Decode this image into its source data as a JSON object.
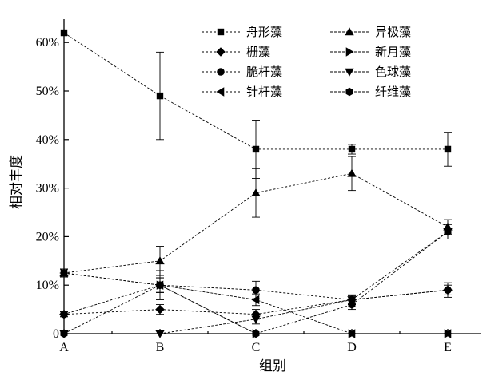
{
  "chart_data": {
    "type": "line",
    "title": "",
    "xlabel": "组别",
    "ylabel": "相对丰度",
    "categories": [
      "A",
      "B",
      "C",
      "D",
      "E"
    ],
    "ylim": [
      0,
      65
    ],
    "y_ticks": [
      0,
      10,
      20,
      30,
      40,
      50,
      60
    ],
    "y_tick_labels": [
      "0",
      "10%",
      "20%",
      "30%",
      "40%",
      "50%",
      "60%"
    ],
    "legend_position": "top-right",
    "grid": false,
    "line_style": "dashed",
    "series": [
      {
        "name": "舟形藻",
        "marker": "square",
        "values": [
          62,
          49,
          38,
          38,
          38
        ],
        "errors": [
          0,
          9,
          6,
          1,
          3.5
        ]
      },
      {
        "name": "栅藻",
        "marker": "diamond",
        "values": [
          4,
          5,
          4,
          7,
          9
        ],
        "errors": [
          0.5,
          1,
          1,
          0.8,
          1
        ]
      },
      {
        "name": "脆杆藻",
        "marker": "circle",
        "values": [
          4,
          10,
          9,
          7,
          9
        ],
        "errors": [
          0.5,
          1.5,
          1.8,
          1,
          1.5
        ]
      },
      {
        "name": "针杆藻",
        "marker": "triangle-left",
        "values": [
          12.5,
          10,
          7,
          0,
          0
        ],
        "errors": [
          0.8,
          1.5,
          1.2,
          0,
          0
        ]
      },
      {
        "name": "异极藻",
        "marker": "triangle-up",
        "values": [
          12.5,
          15,
          29,
          33,
          22
        ],
        "errors": [
          0.8,
          3,
          5,
          3.5,
          1.5
        ]
      },
      {
        "name": "新月藻",
        "marker": "triangle-right",
        "values": [
          12.5,
          10,
          0,
          0,
          0
        ],
        "errors": [
          0.8,
          3,
          0,
          0,
          0
        ]
      },
      {
        "name": "色球藻",
        "marker": "triangle-down",
        "values": [
          0,
          0,
          3,
          7,
          21
        ],
        "errors": [
          0,
          0,
          1,
          1,
          1.5
        ]
      },
      {
        "name": "纤维藻",
        "marker": "hexagon",
        "values": [
          0,
          10,
          0,
          6,
          21
        ],
        "errors": [
          0,
          1.5,
          0,
          1,
          1.5
        ]
      }
    ]
  }
}
